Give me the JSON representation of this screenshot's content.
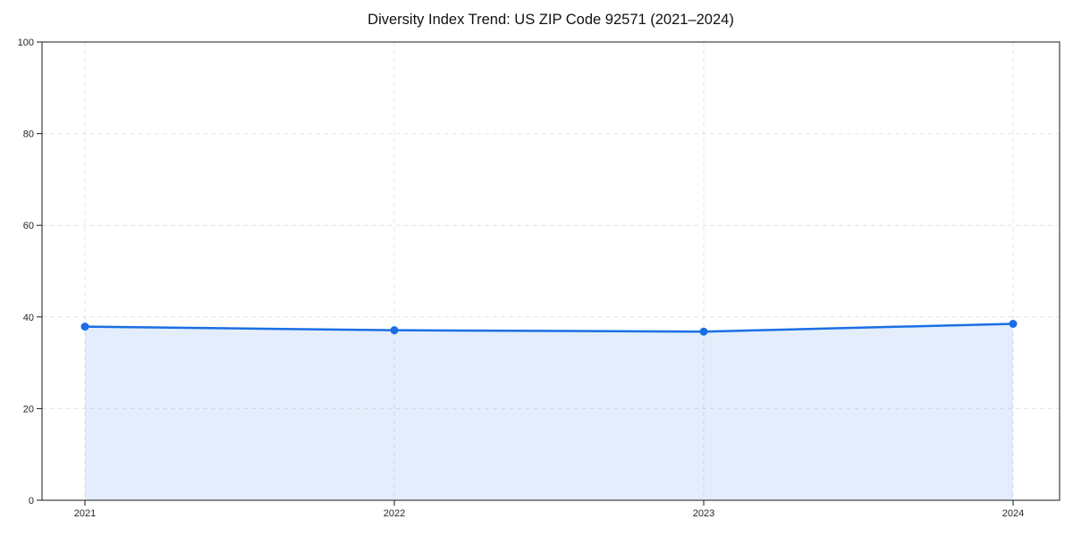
{
  "chart_data": {
    "type": "area",
    "title": "Diversity Index Trend: US ZIP Code 92571 (2021–2024)",
    "categories": [
      "2021",
      "2022",
      "2023",
      "2024"
    ],
    "series": [
      {
        "name": "Diversity Index",
        "values": [
          37.9,
          37.1,
          36.8,
          38.5
        ]
      }
    ],
    "xlabel": "",
    "ylabel": "",
    "ylim": [
      0,
      100
    ],
    "yticks": [
      0,
      20,
      40,
      60,
      80,
      100
    ],
    "grid": "dashed, both axes",
    "legend": "none",
    "marker": "circle",
    "colors": {
      "line": "#1a6fe4",
      "marker": "#1a6fe4",
      "fill": "rgba(26, 111, 228, 0.12)",
      "gridline": "#e4e4e4",
      "axis": "#1a1a1a",
      "tick_label": "#262626",
      "title": "#111111",
      "background": "#ffffff"
    }
  }
}
